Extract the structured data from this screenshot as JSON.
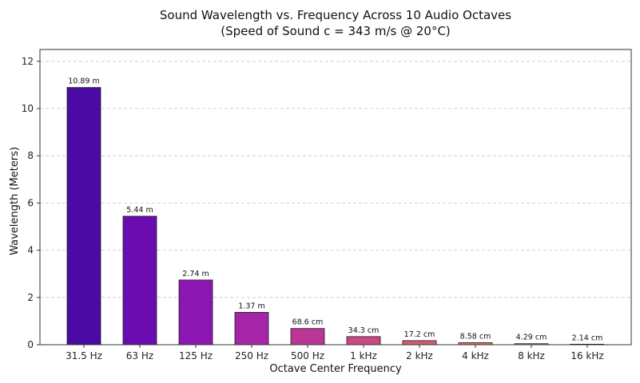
{
  "chart_data": {
    "type": "bar",
    "title": "Sound Wavelength vs. Frequency Across 10 Audio Octaves",
    "subtitle": "(Speed of Sound c = 343 m/s @ 20°C)",
    "xlabel": "Octave Center Frequency",
    "ylabel": "Wavelength (Meters)",
    "ylim": [
      0,
      12.5
    ],
    "yticks": [
      0,
      2,
      4,
      6,
      8,
      10,
      12
    ],
    "grid": true,
    "categories": [
      "31.5 Hz",
      "63 Hz",
      "125 Hz",
      "250 Hz",
      "500 Hz",
      "1 kHz",
      "2 kHz",
      "4 kHz",
      "8 kHz",
      "16 kHz"
    ],
    "values": [
      10.89,
      5.44,
      2.74,
      1.37,
      0.686,
      0.343,
      0.172,
      0.0858,
      0.0429,
      0.0214
    ],
    "data_labels": [
      "10.89 m",
      "5.44 m",
      "2.74 m",
      "1.37 m",
      "68.6 cm",
      "34.3 cm",
      "17.2 cm",
      "8.58 cm",
      "4.29 cm",
      "2.14 cm"
    ],
    "colors": [
      "#4b0aa3",
      "#6a0db0",
      "#8c16b2",
      "#a624a8",
      "#bb3597",
      "#c94985",
      "#d65e72",
      "#e0745f",
      "#e98b4e",
      "#f0a443"
    ]
  }
}
